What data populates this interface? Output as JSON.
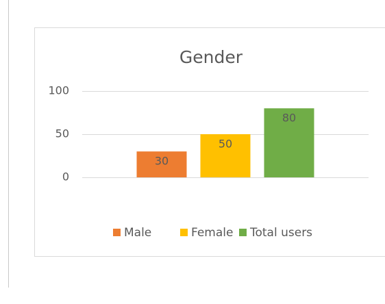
{
  "chart_data": {
    "type": "bar",
    "title": "Gender",
    "categories": [
      null
    ],
    "series": [
      {
        "name": "Male",
        "color": "#ed7d31",
        "values": [
          30
        ]
      },
      {
        "name": "Female",
        "color": "#ffc000",
        "values": [
          50
        ]
      },
      {
        "name": "Total users",
        "color": "#70ad47",
        "values": [
          80
        ]
      }
    ],
    "ylim": [
      0,
      100
    ],
    "yticks": [
      0,
      50,
      100
    ],
    "grid": true,
    "legend": "bottom",
    "data_labels": true
  }
}
